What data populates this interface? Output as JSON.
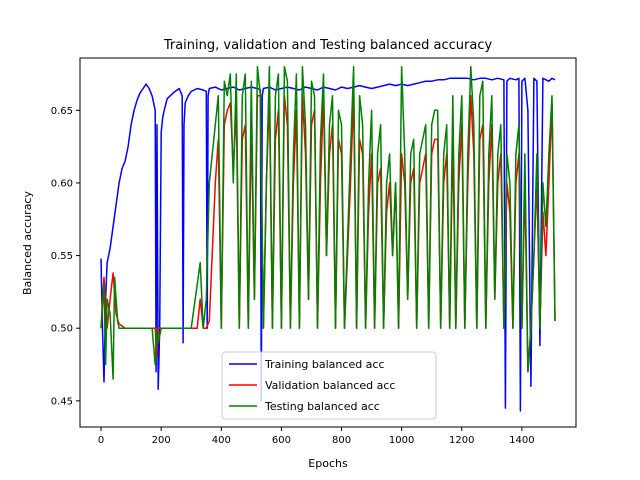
{
  "chart_data": {
    "type": "line",
    "title": "Training, validation and Testing balanced accuracy",
    "xlabel": "Epochs",
    "ylabel": "Balanced accuracy",
    "xlim": [
      -70,
      1580
    ],
    "ylim": [
      0.432,
      0.686
    ],
    "xticks": [
      0,
      200,
      400,
      600,
      800,
      1000,
      1200,
      1400
    ],
    "yticks": [
      0.45,
      0.5,
      0.55,
      0.6,
      0.65
    ],
    "ytick_labels": [
      "0.45",
      "0.50",
      "0.55",
      "0.60",
      "0.65"
    ],
    "grid": false,
    "legend_position": "bottom-center",
    "series": [
      {
        "name": "Training balanced acc",
        "color": "#0000ff",
        "x": [
          0,
          5,
          10,
          15,
          20,
          25,
          30,
          40,
          50,
          60,
          70,
          80,
          90,
          100,
          110,
          120,
          130,
          140,
          150,
          160,
          170,
          180,
          183,
          186,
          190,
          195,
          200,
          205,
          210,
          220,
          240,
          260,
          270,
          273,
          276,
          280,
          290,
          300,
          320,
          340,
          350,
          353,
          356,
          360,
          380,
          400,
          420,
          440,
          460,
          480,
          500,
          520,
          530,
          533,
          536,
          540,
          560,
          580,
          600,
          620,
          640,
          660,
          680,
          700,
          720,
          740,
          760,
          780,
          800,
          820,
          840,
          860,
          880,
          900,
          920,
          940,
          960,
          980,
          1000,
          1020,
          1040,
          1060,
          1080,
          1100,
          1120,
          1140,
          1160,
          1180,
          1200,
          1220,
          1240,
          1260,
          1280,
          1300,
          1320,
          1340,
          1345,
          1350,
          1360,
          1380,
          1390,
          1395,
          1400,
          1410,
          1420,
          1430,
          1440,
          1450,
          1460,
          1470,
          1480,
          1490,
          1500,
          1510
        ],
        "values": [
          0.548,
          0.5,
          0.463,
          0.52,
          0.545,
          0.55,
          0.555,
          0.57,
          0.585,
          0.6,
          0.61,
          0.615,
          0.625,
          0.64,
          0.65,
          0.657,
          0.662,
          0.665,
          0.668,
          0.665,
          0.66,
          0.65,
          0.47,
          0.64,
          0.458,
          0.5,
          0.635,
          0.645,
          0.65,
          0.658,
          0.662,
          0.665,
          0.66,
          0.49,
          0.64,
          0.655,
          0.66,
          0.663,
          0.665,
          0.664,
          0.663,
          0.5,
          0.66,
          0.665,
          0.666,
          0.664,
          0.665,
          0.666,
          0.664,
          0.665,
          0.666,
          0.665,
          0.664,
          0.45,
          0.66,
          0.665,
          0.666,
          0.664,
          0.665,
          0.666,
          0.665,
          0.664,
          0.666,
          0.665,
          0.664,
          0.666,
          0.665,
          0.664,
          0.666,
          0.665,
          0.666,
          0.667,
          0.666,
          0.665,
          0.666,
          0.667,
          0.668,
          0.667,
          0.668,
          0.667,
          0.668,
          0.669,
          0.67,
          0.67,
          0.671,
          0.671,
          0.672,
          0.672,
          0.672,
          0.672,
          0.671,
          0.672,
          0.672,
          0.671,
          0.672,
          0.671,
          0.445,
          0.67,
          0.672,
          0.671,
          0.672,
          0.443,
          0.67,
          0.672,
          0.65,
          0.46,
          0.672,
          0.67,
          0.488,
          0.672,
          0.671,
          0.67,
          0.672,
          0.671
        ]
      },
      {
        "name": "Validation balanced acc",
        "color": "#ff0000",
        "x": [
          0,
          10,
          20,
          30,
          40,
          50,
          60,
          80,
          100,
          140,
          180,
          185,
          190,
          200,
          240,
          280,
          300,
          320,
          330,
          340,
          350,
          360,
          380,
          390,
          400,
          410,
          420,
          430,
          440,
          450,
          460,
          470,
          480,
          490,
          500,
          510,
          520,
          530,
          540,
          550,
          560,
          570,
          580,
          590,
          600,
          610,
          620,
          630,
          640,
          650,
          660,
          670,
          680,
          690,
          700,
          710,
          720,
          730,
          740,
          750,
          760,
          770,
          780,
          790,
          800,
          810,
          820,
          830,
          840,
          850,
          860,
          870,
          880,
          890,
          900,
          910,
          920,
          930,
          940,
          950,
          960,
          970,
          980,
          990,
          1000,
          1010,
          1020,
          1030,
          1040,
          1050,
          1060,
          1070,
          1080,
          1090,
          1100,
          1110,
          1120,
          1130,
          1140,
          1150,
          1160,
          1170,
          1180,
          1190,
          1200,
          1210,
          1220,
          1230,
          1240,
          1250,
          1260,
          1270,
          1280,
          1290,
          1300,
          1310,
          1320,
          1330,
          1340,
          1350,
          1360,
          1370,
          1380,
          1390,
          1400,
          1410,
          1420,
          1430,
          1440,
          1450,
          1460,
          1470,
          1480,
          1490,
          1500,
          1510
        ],
        "values": [
          0.5,
          0.535,
          0.5,
          0.52,
          0.538,
          0.51,
          0.503,
          0.5,
          0.5,
          0.5,
          0.5,
          0.48,
          0.5,
          0.5,
          0.5,
          0.5,
          0.5,
          0.5,
          0.52,
          0.5,
          0.5,
          0.505,
          0.6,
          0.63,
          0.5,
          0.64,
          0.65,
          0.655,
          0.61,
          0.65,
          0.5,
          0.63,
          0.64,
          0.5,
          0.64,
          0.52,
          0.66,
          0.66,
          0.5,
          0.6,
          0.66,
          0.5,
          0.63,
          0.65,
          0.5,
          0.66,
          0.64,
          0.5,
          0.6,
          0.65,
          0.5,
          0.66,
          0.62,
          0.52,
          0.64,
          0.65,
          0.5,
          0.6,
          0.66,
          0.55,
          0.62,
          0.64,
          0.5,
          0.63,
          0.62,
          0.5,
          0.55,
          0.6,
          0.66,
          0.5,
          0.63,
          0.62,
          0.5,
          0.58,
          0.62,
          0.5,
          0.6,
          0.61,
          0.5,
          0.58,
          0.6,
          0.55,
          0.6,
          0.5,
          0.62,
          0.6,
          0.52,
          0.6,
          0.61,
          0.5,
          0.6,
          0.61,
          0.62,
          0.5,
          0.62,
          0.63,
          0.63,
          0.5,
          0.6,
          0.62,
          0.5,
          0.63,
          0.5,
          0.6,
          0.64,
          0.5,
          0.6,
          0.66,
          0.62,
          0.5,
          0.63,
          0.64,
          0.5,
          0.6,
          0.64,
          0.52,
          0.6,
          0.62,
          0.5,
          0.6,
          0.58,
          0.5,
          0.6,
          0.62,
          0.5,
          0.6,
          0.47,
          0.5,
          0.55,
          0.6,
          0.5,
          0.58,
          0.55,
          0.6,
          0.655,
          0.505
        ]
      },
      {
        "name": "Testing balanced acc",
        "color": "#008000",
        "x": [
          0,
          10,
          15,
          20,
          30,
          40,
          45,
          50,
          55,
          60,
          80,
          100,
          140,
          170,
          180,
          185,
          190,
          200,
          240,
          280,
          300,
          330,
          340,
          350,
          360,
          380,
          390,
          400,
          410,
          420,
          430,
          440,
          450,
          460,
          470,
          480,
          490,
          500,
          510,
          520,
          530,
          540,
          550,
          560,
          570,
          580,
          590,
          600,
          610,
          620,
          630,
          640,
          650,
          660,
          670,
          680,
          690,
          700,
          710,
          720,
          730,
          740,
          750,
          760,
          770,
          780,
          790,
          800,
          810,
          820,
          830,
          840,
          850,
          860,
          870,
          880,
          890,
          900,
          910,
          920,
          930,
          940,
          950,
          960,
          970,
          980,
          990,
          1000,
          1010,
          1020,
          1030,
          1040,
          1050,
          1060,
          1070,
          1080,
          1090,
          1100,
          1110,
          1120,
          1130,
          1140,
          1150,
          1160,
          1170,
          1180,
          1190,
          1200,
          1210,
          1220,
          1230,
          1240,
          1250,
          1260,
          1270,
          1280,
          1290,
          1300,
          1310,
          1320,
          1330,
          1340,
          1350,
          1360,
          1370,
          1380,
          1390,
          1400,
          1410,
          1420,
          1430,
          1440,
          1450,
          1460,
          1470,
          1480,
          1490,
          1500,
          1510
        ],
        "values": [
          0.5,
          0.53,
          0.475,
          0.52,
          0.51,
          0.465,
          0.535,
          0.52,
          0.505,
          0.5,
          0.5,
          0.5,
          0.5,
          0.5,
          0.475,
          0.5,
          0.49,
          0.5,
          0.5,
          0.5,
          0.5,
          0.545,
          0.5,
          0.52,
          0.6,
          0.64,
          0.66,
          0.5,
          0.67,
          0.66,
          0.675,
          0.6,
          0.675,
          0.5,
          0.66,
          0.675,
          0.5,
          0.67,
          0.52,
          0.68,
          0.66,
          0.5,
          0.6,
          0.68,
          0.5,
          0.66,
          0.675,
          0.5,
          0.68,
          0.67,
          0.5,
          0.62,
          0.675,
          0.5,
          0.68,
          0.64,
          0.52,
          0.67,
          0.66,
          0.5,
          0.63,
          0.675,
          0.55,
          0.64,
          0.66,
          0.5,
          0.65,
          0.64,
          0.5,
          0.56,
          0.62,
          0.68,
          0.5,
          0.66,
          0.64,
          0.5,
          0.6,
          0.65,
          0.5,
          0.62,
          0.64,
          0.5,
          0.6,
          0.62,
          0.55,
          0.6,
          0.5,
          0.68,
          0.62,
          0.52,
          0.62,
          0.63,
          0.5,
          0.62,
          0.63,
          0.64,
          0.5,
          0.64,
          0.65,
          0.65,
          0.5,
          0.62,
          0.64,
          0.5,
          0.66,
          0.5,
          0.62,
          0.66,
          0.5,
          0.62,
          0.68,
          0.64,
          0.5,
          0.66,
          0.67,
          0.5,
          0.62,
          0.66,
          0.52,
          0.62,
          0.64,
          0.5,
          0.62,
          0.6,
          0.5,
          0.62,
          0.64,
          0.5,
          0.62,
          0.47,
          0.5,
          0.55,
          0.62,
          0.5,
          0.6,
          0.57,
          0.62,
          0.66,
          0.505
        ]
      }
    ]
  }
}
